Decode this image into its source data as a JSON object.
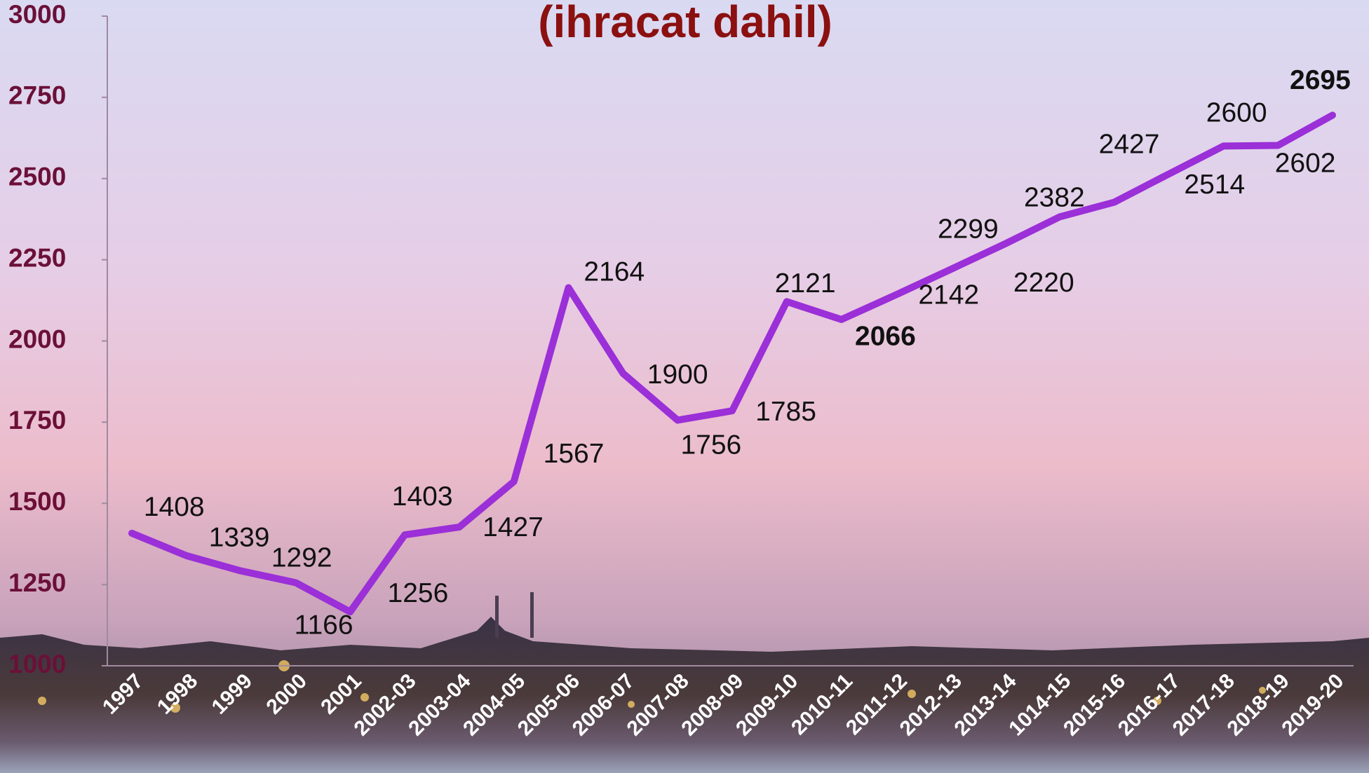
{
  "chart_data": {
    "type": "line",
    "title": "(ihracat dahil)",
    "categories": [
      "1997",
      "1998",
      "1999",
      "2000",
      "2001",
      "2002-03",
      "2003-04",
      "2004-05",
      "2005-06",
      "2006-07",
      "2007-08",
      "2008-09",
      "2009-10",
      "2010-11",
      "2011-12",
      "2012-13",
      "2013-14",
      "1014-15",
      "2015-16",
      "2016-17",
      "2017-18",
      "2018-19",
      "2019-20"
    ],
    "values": [
      1408,
      1339,
      1292,
      1256,
      1166,
      1403,
      1427,
      1567,
      2164,
      1900,
      1756,
      1785,
      2121,
      2066,
      2142,
      2220,
      2299,
      2382,
      2427,
      2514,
      2600,
      2602,
      2695
    ],
    "color": "#9b2fd8",
    "ylim": [
      1000,
      3000
    ],
    "yticks": [
      1000,
      1250,
      1500,
      1750,
      2000,
      2250,
      2500,
      2750,
      3000
    ]
  }
}
